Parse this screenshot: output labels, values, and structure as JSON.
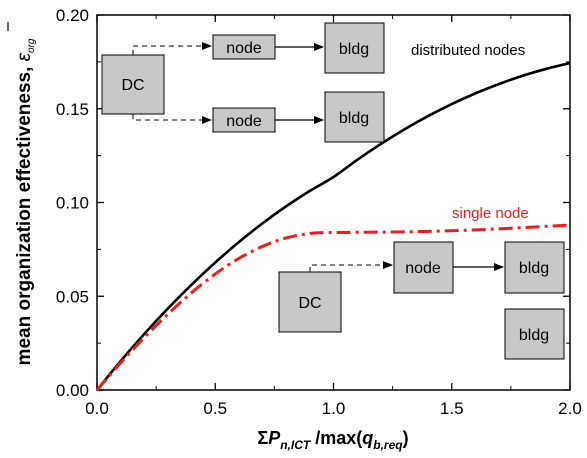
{
  "chart_data": {
    "type": "line",
    "xlabel": {
      "sigma": "Σ",
      "P": "P",
      "P_sub": "n,ICT",
      "max": " /max(",
      "q": "q",
      "q_sub": "b,req",
      "close": ")"
    },
    "ylabel": {
      "main": "mean organization effectiveness, ",
      "symbol": "ε",
      "symbol_sub": "org"
    },
    "xlim": [
      0.0,
      2.0
    ],
    "ylim": [
      0.0,
      0.2
    ],
    "xticks": [
      "0.0",
      "0.5",
      "1.0",
      "1.5",
      "2.0"
    ],
    "yticks": [
      "0.00",
      "0.05",
      "0.10",
      "0.15",
      "0.20"
    ],
    "grid": false,
    "series": [
      {
        "name": "distributed nodes",
        "color": "#000000",
        "style": "solid",
        "x": [
          0.0,
          0.1,
          0.2,
          0.3,
          0.4,
          0.5,
          0.6,
          0.7,
          0.8,
          0.9,
          1.0,
          1.1,
          1.2,
          1.3,
          1.4,
          1.5,
          1.6,
          1.7,
          1.8,
          1.9,
          2.0
        ],
        "y": [
          0.0,
          0.0154,
          0.0299,
          0.0435,
          0.0562,
          0.068,
          0.0789,
          0.0889,
          0.098,
          0.1062,
          0.1136,
          0.1227,
          0.1312,
          0.139,
          0.1461,
          0.1525,
          0.1582,
          0.1632,
          0.1676,
          0.1713,
          0.1744
        ]
      },
      {
        "name": "single node",
        "color": "#ee1c1c",
        "style": "dashdot",
        "x": [
          0.0,
          0.1,
          0.2,
          0.3,
          0.4,
          0.5,
          0.6,
          0.7,
          0.8,
          0.9,
          1.0,
          1.2,
          1.4,
          1.6,
          1.8,
          2.0
        ],
        "y": [
          0.0,
          0.0145,
          0.028,
          0.0405,
          0.0519,
          0.0619,
          0.0702,
          0.0766,
          0.0811,
          0.0835,
          0.084,
          0.0842,
          0.0846,
          0.0854,
          0.0866,
          0.088
        ]
      }
    ],
    "legend_labels": {
      "distributed": "distributed nodes",
      "single": "single node"
    },
    "diagram_top": {
      "dc": "DC",
      "node1": "node",
      "node2": "node",
      "bldg1": "bldg",
      "bldg2": "bldg"
    },
    "diagram_bottom": {
      "dc": "DC",
      "node": "node",
      "bldg1": "bldg",
      "bldg2": "bldg"
    }
  }
}
